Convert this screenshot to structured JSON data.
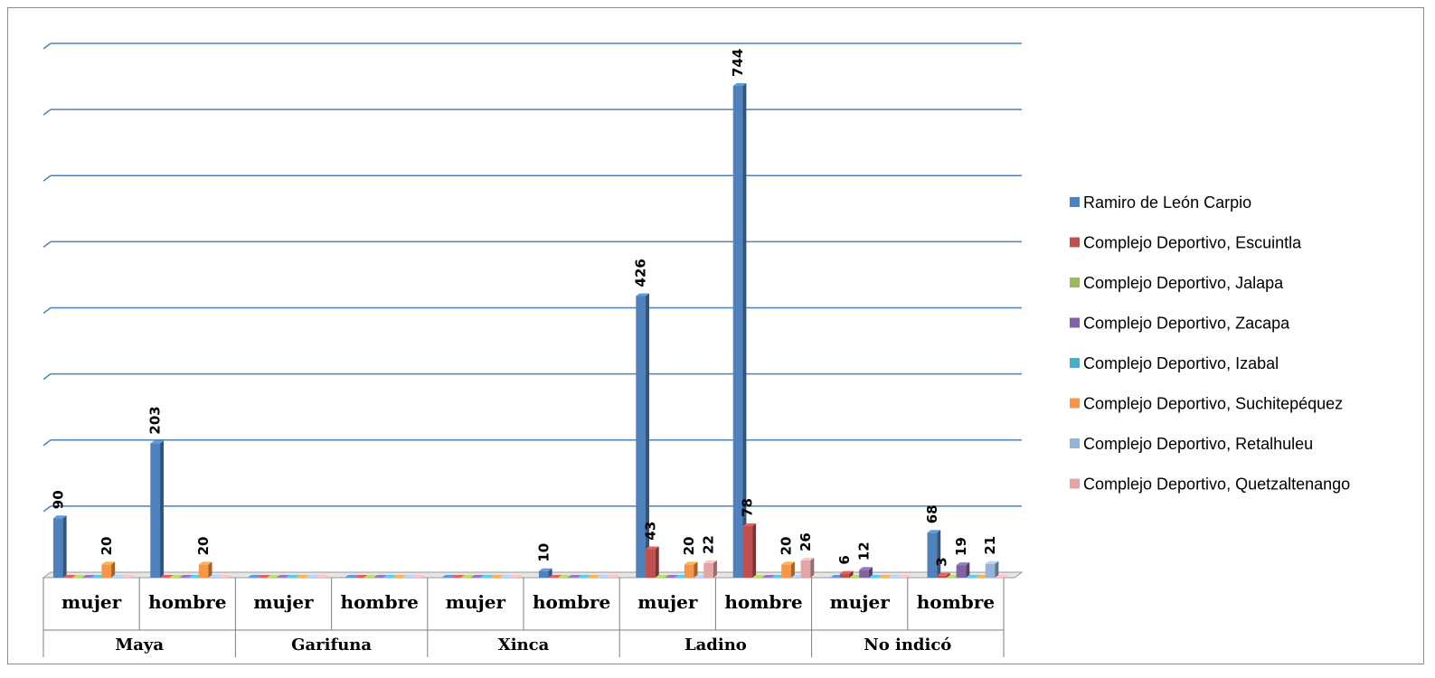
{
  "chart_data": {
    "type": "bar",
    "title": "",
    "xlabel": "",
    "ylabel": "",
    "ylim": [
      0,
      800
    ],
    "grid": true,
    "legend_position": "right",
    "groups": [
      "Maya",
      "Garifuna",
      "Xinca",
      "Ladino",
      "No indicó"
    ],
    "categories": [
      "mujer",
      "hombre",
      "mujer",
      "hombre",
      "mujer",
      "hombre",
      "mujer",
      "hombre",
      "mujer",
      "hombre"
    ],
    "series": [
      {
        "name": "Ramiro de León Carpio",
        "color": "#4f81bd",
        "values": [
          90,
          203,
          0,
          0,
          0,
          10,
          426,
          744,
          0,
          68
        ]
      },
      {
        "name": "Complejo Deportivo, Escuintla",
        "color": "#c0504d",
        "values": [
          0,
          0,
          0,
          0,
          0,
          0,
          43,
          78,
          6,
          3
        ]
      },
      {
        "name": "Complejo Deportivo, Jalapa",
        "color": "#9bbb59",
        "values": [
          0,
          0,
          0,
          0,
          0,
          0,
          0,
          0,
          0,
          0
        ]
      },
      {
        "name": "Complejo Deportivo, Zacapa",
        "color": "#8064a2",
        "values": [
          0,
          0,
          0,
          0,
          0,
          0,
          0,
          0,
          12,
          19
        ]
      },
      {
        "name": "Complejo Deportivo, Izabal",
        "color": "#4bacc6",
        "values": [
          0,
          0,
          0,
          0,
          0,
          0,
          0,
          0,
          0,
          0
        ]
      },
      {
        "name": "Complejo Deportivo, Suchitepéquez",
        "color": "#f79646",
        "values": [
          20,
          20,
          0,
          0,
          0,
          0,
          20,
          20,
          0,
          0
        ]
      },
      {
        "name": "Complejo Deportivo, Retalhuleu",
        "color": "#95b3d7",
        "values": [
          0,
          0,
          0,
          0,
          0,
          0,
          0,
          0,
          0,
          21
        ]
      },
      {
        "name": "Complejo Deportivo, Quetzaltenango",
        "color": "#e6a5a5",
        "values": [
          0,
          0,
          0,
          0,
          0,
          0,
          22,
          26,
          0,
          0
        ]
      }
    ],
    "data_labels": [
      {
        "series": 0,
        "index": 0,
        "text": "90"
      },
      {
        "series": 5,
        "index": 0,
        "text": "20"
      },
      {
        "series": 0,
        "index": 1,
        "text": "203"
      },
      {
        "series": 5,
        "index": 1,
        "text": "20"
      },
      {
        "series": 0,
        "index": 5,
        "text": "10"
      },
      {
        "series": 0,
        "index": 6,
        "text": "426"
      },
      {
        "series": 1,
        "index": 6,
        "text": "43"
      },
      {
        "series": 5,
        "index": 6,
        "text": "20"
      },
      {
        "series": 7,
        "index": 6,
        "text": "22"
      },
      {
        "series": 0,
        "index": 7,
        "text": "744"
      },
      {
        "series": 1,
        "index": 7,
        "text": "78"
      },
      {
        "series": 5,
        "index": 7,
        "text": "20"
      },
      {
        "series": 7,
        "index": 7,
        "text": "26"
      },
      {
        "series": 1,
        "index": 8,
        "text": "6"
      },
      {
        "series": 3,
        "index": 8,
        "text": "12"
      },
      {
        "series": 0,
        "index": 9,
        "text": "68"
      },
      {
        "series": 1,
        "index": 9,
        "text": "3"
      },
      {
        "series": 3,
        "index": 9,
        "text": "19"
      },
      {
        "series": 6,
        "index": 9,
        "text": "21"
      }
    ]
  }
}
